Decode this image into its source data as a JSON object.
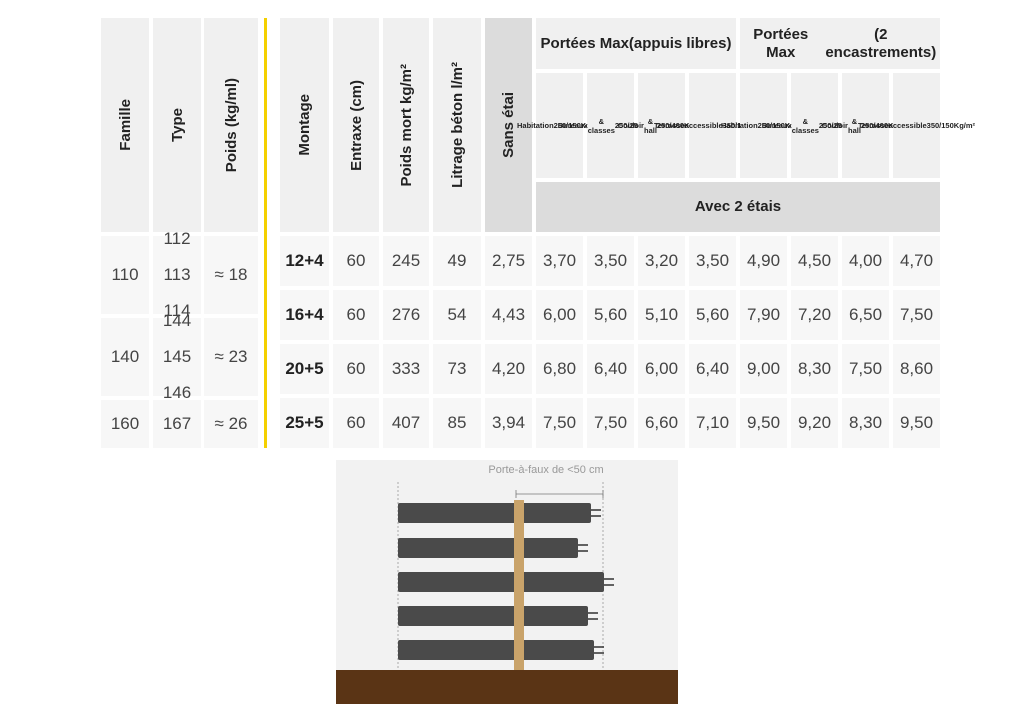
{
  "left_table": {
    "headers": [
      "Famille",
      "Type",
      "Poids (kg/ml)"
    ],
    "rows": [
      {
        "famille": "110",
        "types": [
          "112",
          "113",
          "114"
        ],
        "poids": "≈ 18"
      },
      {
        "famille": "140",
        "types": [
          "144",
          "145",
          "146"
        ],
        "poids": "≈ 23"
      },
      {
        "famille": "160",
        "types": [
          "167"
        ],
        "poids": "≈ 26"
      }
    ]
  },
  "right_table": {
    "headers": [
      "Montage",
      "Entraxe (cm)",
      "Poids mort kg/m²",
      "Litrage béton l/m²",
      "Sans étai"
    ],
    "group1_title": [
      "Portées Max",
      "(appuis libres)"
    ],
    "group2_title": [
      "Portées Max",
      "(2 encastrements)"
    ],
    "sub_headers": [
      [
        "Habitation",
        "250/150",
        "Kg/m²"
      ],
      [
        "Bureaux",
        "& classes",
        "250/250",
        "Kg/m²"
      ],
      [
        "Couloir",
        "& hall",
        "250/400",
        "Kg/m²"
      ],
      [
        "Terrasse",
        "accessible",
        "350/150",
        "Kg/m²"
      ],
      [
        "Habitation",
        "250/150",
        "Kg/m²"
      ],
      [
        "Bureaux",
        "& classes",
        "250/250",
        "Kg/m²"
      ],
      [
        "Couloir",
        "& hall",
        "250/400",
        "Kg/m²"
      ],
      [
        "Terrasse",
        "accessible",
        "350/150",
        "Kg/m²"
      ]
    ],
    "avec_label": "Avec 2 étais",
    "rows": [
      {
        "montage": "12+4",
        "values": [
          "60",
          "245",
          "49",
          "2,75",
          "3,70",
          "3,50",
          "3,20",
          "3,50",
          "4,90",
          "4,50",
          "4,00",
          "4,70"
        ]
      },
      {
        "montage": "16+4",
        "values": [
          "60",
          "276",
          "54",
          "4,43",
          "6,00",
          "5,60",
          "5,10",
          "5,60",
          "7,90",
          "7,20",
          "6,50",
          "7,50"
        ]
      },
      {
        "montage": "20+5",
        "values": [
          "60",
          "333",
          "73",
          "4,20",
          "6,80",
          "6,40",
          "6,00",
          "6,40",
          "9,00",
          "8,30",
          "7,50",
          "8,60"
        ]
      },
      {
        "montage": "25+5",
        "values": [
          "60",
          "407",
          "85",
          "3,94",
          "7,50",
          "7,50",
          "6,60",
          "7,10",
          "9,50",
          "9,20",
          "8,30",
          "9,50"
        ]
      }
    ]
  },
  "illustration": {
    "label": "Porte-à-faux de <50 cm",
    "colors": {
      "beam": "#4a4a4a",
      "support": "#c9a36a",
      "ground": "#5a3415",
      "background": "#f2f2f2"
    }
  }
}
